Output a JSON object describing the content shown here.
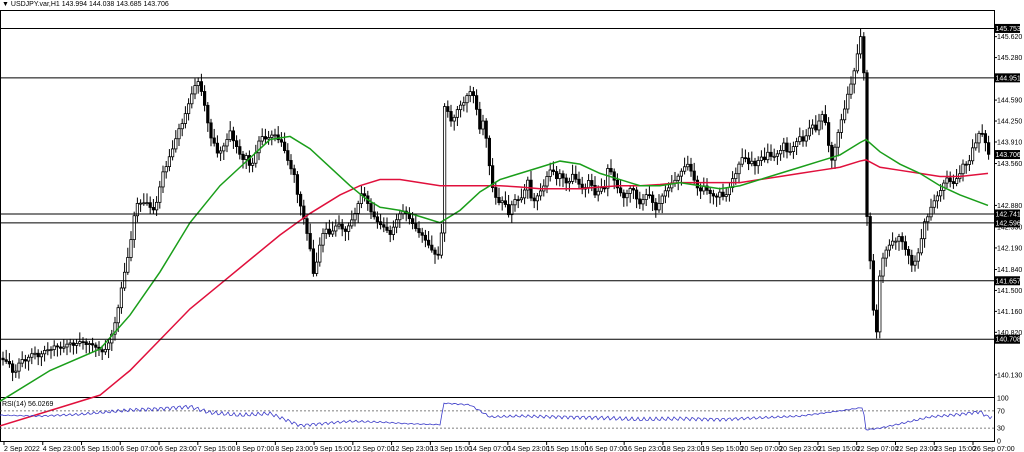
{
  "header": {
    "triangle": "▼",
    "symbol": "USDJPY.var,H1",
    "ohlc": "143.994 144.038 143.685 143.706"
  },
  "rsi_label": "RSI(14) 56.0269",
  "colors": {
    "candle_up": "#ffffff",
    "candle_down": "#000000",
    "candle_outline": "#000000",
    "ma_fast": "#1a9e1a",
    "ma_slow": "#e0103c",
    "rsi_line": "#3a3ac8",
    "level_line": "#000000",
    "label_bg": "#000000",
    "label_text": "#ffffff"
  },
  "chart_data": {
    "type": "line",
    "instrument": "USDJPY.var",
    "timeframe": "H1",
    "price_axis": {
      "ylim": [
        139.77,
        146.02
      ],
      "ticks": [
        "145.620",
        "145.280",
        "144.590",
        "144.250",
        "143.910",
        "143.560",
        "142.880",
        "142.530",
        "142.190",
        "141.840",
        "141.500",
        "141.160",
        "140.820",
        "140.130"
      ]
    },
    "time_axis": {
      "labels": [
        "2 Sep 2022",
        "4 Sep 23:00",
        "5 Sep 15:00",
        "6 Sep 07:00",
        "6 Sep 23:00",
        "7 Sep 15:00",
        "8 Sep 07:00",
        "8 Sep 23:00",
        "9 Sep 15:00",
        "12 Sep 07:00",
        "12 Sep 23:00",
        "13 Sep 15:00",
        "14 Sep 07:00",
        "14 Sep 23:00",
        "15 Sep 15:00",
        "16 Sep 07:00",
        "16 Sep 23:00",
        "18 Sep 23:00",
        "19 Sep 15:00",
        "20 Sep 07:00",
        "20 Sep 23:00",
        "21 Sep 15:00",
        "22 Sep 07:00",
        "22 Sep 23:00",
        "23 Sep 15:00",
        "26 Sep 07:00"
      ]
    },
    "levels": [
      {
        "value": 145.753,
        "label": "145.753"
      },
      {
        "value": 144.951,
        "label": "144.951"
      },
      {
        "value": 142.741,
        "label": "142.741"
      },
      {
        "value": 142.596,
        "label": "142.596"
      },
      {
        "value": 141.657,
        "label": "141.657"
      },
      {
        "value": 140.708,
        "label": "140.708"
      }
    ],
    "current_price": {
      "value": 143.706,
      "label": "143.706"
    },
    "close_path": [
      [
        0,
        140.4
      ],
      [
        6,
        140.35
      ],
      [
        10,
        140.3
      ],
      [
        14,
        140.1
      ],
      [
        18,
        140.3
      ],
      [
        22,
        140.38
      ],
      [
        26,
        140.35
      ],
      [
        30,
        140.45
      ],
      [
        34,
        140.5
      ],
      [
        38,
        140.42
      ],
      [
        42,
        140.48
      ],
      [
        46,
        140.55
      ],
      [
        50,
        140.52
      ],
      [
        54,
        140.6
      ],
      [
        58,
        140.58
      ],
      [
        62,
        140.55
      ],
      [
        66,
        140.62
      ],
      [
        70,
        140.65
      ],
      [
        74,
        140.6
      ],
      [
        78,
        140.66
      ],
      [
        82,
        140.68
      ],
      [
        86,
        140.62
      ],
      [
        90,
        140.64
      ],
      [
        94,
        140.6
      ],
      [
        98,
        140.55
      ],
      [
        102,
        140.5
      ],
      [
        106,
        140.55
      ],
      [
        110,
        140.7
      ],
      [
        114,
        140.9
      ],
      [
        118,
        141.2
      ],
      [
        122,
        141.6
      ],
      [
        126,
        141.9
      ],
      [
        130,
        142.2
      ],
      [
        134,
        142.7
      ],
      [
        138,
        142.95
      ],
      [
        142,
        142.9
      ],
      [
        146,
        142.95
      ],
      [
        150,
        142.85
      ],
      [
        154,
        142.8
      ],
      [
        158,
        143.0
      ],
      [
        162,
        143.4
      ],
      [
        166,
        143.5
      ],
      [
        170,
        143.7
      ],
      [
        174,
        143.85
      ],
      [
        178,
        144.1
      ],
      [
        182,
        144.2
      ],
      [
        186,
        144.4
      ],
      [
        190,
        144.6
      ],
      [
        194,
        144.8
      ],
      [
        198,
        144.9
      ],
      [
        202,
        144.7
      ],
      [
        206,
        144.4
      ],
      [
        210,
        144.0
      ],
      [
        214,
        143.9
      ],
      [
        218,
        143.7
      ],
      [
        222,
        143.8
      ],
      [
        226,
        143.9
      ],
      [
        230,
        144.1
      ],
      [
        234,
        143.9
      ],
      [
        238,
        143.8
      ],
      [
        242,
        143.6
      ],
      [
        246,
        143.7
      ],
      [
        250,
        143.5
      ],
      [
        254,
        143.6
      ],
      [
        258,
        143.9
      ],
      [
        262,
        144.0
      ],
      [
        266,
        143.95
      ],
      [
        270,
        144.0
      ],
      [
        274,
        144.05
      ],
      [
        278,
        143.95
      ],
      [
        282,
        143.9
      ],
      [
        286,
        143.7
      ],
      [
        290,
        143.5
      ],
      [
        294,
        143.4
      ],
      [
        298,
        143.0
      ],
      [
        302,
        142.8
      ],
      [
        306,
        142.5
      ],
      [
        310,
        142.2
      ],
      [
        314,
        141.7
      ],
      [
        318,
        142.1
      ],
      [
        322,
        142.4
      ],
      [
        326,
        142.5
      ],
      [
        330,
        142.4
      ],
      [
        334,
        142.5
      ],
      [
        338,
        142.6
      ],
      [
        342,
        142.5
      ],
      [
        346,
        142.45
      ],
      [
        350,
        142.6
      ],
      [
        354,
        142.7
      ],
      [
        358,
        142.9
      ],
      [
        362,
        143.1
      ],
      [
        366,
        143.0
      ],
      [
        370,
        142.8
      ],
      [
        374,
        142.7
      ],
      [
        378,
        142.6
      ],
      [
        382,
        142.55
      ],
      [
        386,
        142.5
      ],
      [
        390,
        142.4
      ],
      [
        394,
        142.55
      ],
      [
        398,
        142.7
      ],
      [
        402,
        142.8
      ],
      [
        406,
        142.75
      ],
      [
        410,
        142.65
      ],
      [
        414,
        142.55
      ],
      [
        418,
        142.45
      ],
      [
        422,
        142.4
      ],
      [
        426,
        142.3
      ],
      [
        430,
        142.2
      ],
      [
        434,
        142.1
      ],
      [
        438,
        142.05
      ],
      [
        442,
        142.5
      ],
      [
        444,
        144.5
      ],
      [
        448,
        144.4
      ],
      [
        452,
        144.2
      ],
      [
        456,
        144.4
      ],
      [
        460,
        144.5
      ],
      [
        464,
        144.55
      ],
      [
        468,
        144.7
      ],
      [
        472,
        144.75
      ],
      [
        476,
        144.5
      ],
      [
        480,
        144.1
      ],
      [
        484,
        144.3
      ],
      [
        488,
        143.7
      ],
      [
        492,
        143.2
      ],
      [
        496,
        143.0
      ],
      [
        500,
        142.9
      ],
      [
        504,
        143.0
      ],
      [
        508,
        142.7
      ],
      [
        512,
        142.9
      ],
      [
        516,
        143.0
      ],
      [
        520,
        142.95
      ],
      [
        524,
        143.1
      ],
      [
        528,
        143.3
      ],
      [
        532,
        142.9
      ],
      [
        536,
        143.0
      ],
      [
        540,
        143.1
      ],
      [
        544,
        143.2
      ],
      [
        548,
        143.4
      ],
      [
        552,
        143.5
      ],
      [
        556,
        143.3
      ],
      [
        560,
        143.4
      ],
      [
        564,
        143.3
      ],
      [
        568,
        143.2
      ],
      [
        572,
        143.4
      ],
      [
        576,
        143.3
      ],
      [
        580,
        143.2
      ],
      [
        584,
        143.1
      ],
      [
        588,
        143.3
      ],
      [
        592,
        143.2
      ],
      [
        596,
        143.0
      ],
      [
        600,
        143.2
      ],
      [
        604,
        143.1
      ],
      [
        608,
        143.5
      ],
      [
        612,
        143.4
      ],
      [
        616,
        143.2
      ],
      [
        620,
        143.1
      ],
      [
        624,
        143.0
      ],
      [
        628,
        143.1
      ],
      [
        632,
        143.2
      ],
      [
        636,
        143.0
      ],
      [
        640,
        142.9
      ],
      [
        644,
        143.0
      ],
      [
        648,
        143.1
      ],
      [
        652,
        142.95
      ],
      [
        656,
        142.8
      ],
      [
        660,
        142.95
      ],
      [
        664,
        143.1
      ],
      [
        668,
        143.15
      ],
      [
        672,
        143.25
      ],
      [
        676,
        143.3
      ],
      [
        680,
        143.4
      ],
      [
        684,
        143.5
      ],
      [
        688,
        143.55
      ],
      [
        692,
        143.4
      ],
      [
        696,
        143.2
      ],
      [
        700,
        143.1
      ],
      [
        704,
        143.2
      ],
      [
        708,
        143.1
      ],
      [
        712,
        143.05
      ],
      [
        716,
        143.0
      ],
      [
        720,
        143.1
      ],
      [
        724,
        143.0
      ],
      [
        728,
        143.1
      ],
      [
        732,
        143.3
      ],
      [
        736,
        143.4
      ],
      [
        740,
        143.6
      ],
      [
        744,
        143.7
      ],
      [
        748,
        143.55
      ],
      [
        752,
        143.6
      ],
      [
        756,
        143.5
      ],
      [
        760,
        143.7
      ],
      [
        764,
        143.6
      ],
      [
        768,
        143.75
      ],
      [
        772,
        143.65
      ],
      [
        776,
        143.7
      ],
      [
        780,
        143.75
      ],
      [
        784,
        143.9
      ],
      [
        788,
        143.7
      ],
      [
        792,
        143.8
      ],
      [
        796,
        143.9
      ],
      [
        800,
        144.0
      ],
      [
        804,
        143.9
      ],
      [
        808,
        144.1
      ],
      [
        812,
        144.2
      ],
      [
        816,
        144.1
      ],
      [
        820,
        144.3
      ],
      [
        824,
        144.4
      ],
      [
        828,
        143.9
      ],
      [
        832,
        143.6
      ],
      [
        836,
        143.9
      ],
      [
        840,
        144.2
      ],
      [
        844,
        144.4
      ],
      [
        848,
        144.7
      ],
      [
        852,
        144.9
      ],
      [
        856,
        145.2
      ],
      [
        860,
        145.6
      ],
      [
        863,
        145.7
      ],
      [
        866,
        143.2
      ],
      [
        868,
        142.2
      ],
      [
        871,
        141.9
      ],
      [
        874,
        141.0
      ],
      [
        877,
        140.8
      ],
      [
        880,
        141.8
      ],
      [
        884,
        142.1
      ],
      [
        888,
        142.2
      ],
      [
        892,
        142.3
      ],
      [
        896,
        142.3
      ],
      [
        900,
        142.4
      ],
      [
        904,
        142.2
      ],
      [
        908,
        142.1
      ],
      [
        912,
        141.9
      ],
      [
        916,
        142.0
      ],
      [
        920,
        142.2
      ],
      [
        924,
        142.6
      ],
      [
        928,
        142.7
      ],
      [
        932,
        142.9
      ],
      [
        936,
        143.0
      ],
      [
        940,
        143.1
      ],
      [
        944,
        143.25
      ],
      [
        948,
        143.35
      ],
      [
        952,
        143.2
      ],
      [
        956,
        143.3
      ],
      [
        960,
        143.4
      ],
      [
        964,
        143.6
      ],
      [
        968,
        143.5
      ],
      [
        972,
        143.8
      ],
      [
        976,
        143.9
      ],
      [
        980,
        144.1
      ],
      [
        984,
        144.0
      ],
      [
        988,
        143.71
      ]
    ],
    "ma_fast_path": [
      [
        0,
        139.7
      ],
      [
        50,
        140.2
      ],
      [
        100,
        140.55
      ],
      [
        130,
        141.1
      ],
      [
        160,
        141.8
      ],
      [
        190,
        142.6
      ],
      [
        220,
        143.2
      ],
      [
        250,
        143.65
      ],
      [
        270,
        143.95
      ],
      [
        290,
        144.0
      ],
      [
        310,
        143.8
      ],
      [
        330,
        143.5
      ],
      [
        350,
        143.2
      ],
      [
        365,
        143.0
      ],
      [
        380,
        142.85
      ],
      [
        400,
        142.8
      ],
      [
        420,
        142.7
      ],
      [
        440,
        142.6
      ],
      [
        460,
        142.8
      ],
      [
        480,
        143.1
      ],
      [
        500,
        143.3
      ],
      [
        520,
        143.4
      ],
      [
        540,
        143.5
      ],
      [
        560,
        143.6
      ],
      [
        580,
        143.55
      ],
      [
        600,
        143.4
      ],
      [
        620,
        143.3
      ],
      [
        640,
        143.2
      ],
      [
        660,
        143.2
      ],
      [
        680,
        143.25
      ],
      [
        700,
        143.2
      ],
      [
        720,
        143.15
      ],
      [
        740,
        143.2
      ],
      [
        760,
        143.3
      ],
      [
        780,
        143.4
      ],
      [
        800,
        143.5
      ],
      [
        820,
        143.6
      ],
      [
        840,
        143.7
      ],
      [
        860,
        143.9
      ],
      [
        866,
        143.95
      ],
      [
        880,
        143.75
      ],
      [
        900,
        143.55
      ],
      [
        920,
        143.4
      ],
      [
        940,
        143.2
      ],
      [
        960,
        143.05
      ],
      [
        988,
        142.88
      ]
    ],
    "ma_slow_path": [
      [
        0,
        139.3
      ],
      [
        60,
        139.6
      ],
      [
        100,
        139.8
      ],
      [
        130,
        140.2
      ],
      [
        160,
        140.7
      ],
      [
        190,
        141.2
      ],
      [
        220,
        141.6
      ],
      [
        250,
        142.0
      ],
      [
        280,
        142.4
      ],
      [
        310,
        142.75
      ],
      [
        340,
        143.05
      ],
      [
        360,
        143.2
      ],
      [
        380,
        143.3
      ],
      [
        400,
        143.3
      ],
      [
        420,
        143.25
      ],
      [
        440,
        143.2
      ],
      [
        460,
        143.2
      ],
      [
        480,
        143.2
      ],
      [
        500,
        143.2
      ],
      [
        520,
        143.18
      ],
      [
        540,
        143.15
      ],
      [
        560,
        143.15
      ],
      [
        580,
        143.15
      ],
      [
        600,
        143.18
      ],
      [
        620,
        143.2
      ],
      [
        640,
        143.2
      ],
      [
        660,
        143.22
      ],
      [
        680,
        143.25
      ],
      [
        700,
        143.25
      ],
      [
        720,
        143.25
      ],
      [
        740,
        143.25
      ],
      [
        760,
        143.3
      ],
      [
        780,
        143.35
      ],
      [
        800,
        143.4
      ],
      [
        820,
        143.45
      ],
      [
        840,
        143.5
      ],
      [
        860,
        143.6
      ],
      [
        866,
        143.62
      ],
      [
        880,
        143.5
      ],
      [
        900,
        143.45
      ],
      [
        920,
        143.4
      ],
      [
        940,
        143.35
      ],
      [
        960,
        143.35
      ],
      [
        988,
        143.4
      ]
    ],
    "rsi": {
      "name": "RSI(14)",
      "value": 56.0269,
      "ylim": [
        0,
        100
      ],
      "ticks": [
        100,
        70,
        30,
        0
      ],
      "levels": [
        70,
        30
      ],
      "path": [
        [
          0,
          60
        ],
        [
          40,
          58
        ],
        [
          80,
          62
        ],
        [
          110,
          68
        ],
        [
          130,
          72
        ],
        [
          160,
          75
        ],
        [
          190,
          80
        ],
        [
          210,
          66
        ],
        [
          240,
          60
        ],
        [
          270,
          64
        ],
        [
          300,
          36
        ],
        [
          320,
          40
        ],
        [
          350,
          46
        ],
        [
          380,
          44
        ],
        [
          410,
          40
        ],
        [
          440,
          38
        ],
        [
          444,
          88
        ],
        [
          470,
          84
        ],
        [
          490,
          56
        ],
        [
          520,
          58
        ],
        [
          560,
          56
        ],
        [
          600,
          54
        ],
        [
          640,
          50
        ],
        [
          680,
          52
        ],
        [
          720,
          50
        ],
        [
          760,
          54
        ],
        [
          800,
          58
        ],
        [
          840,
          70
        ],
        [
          863,
          78
        ],
        [
          866,
          26
        ],
        [
          880,
          30
        ],
        [
          900,
          40
        ],
        [
          930,
          56
        ],
        [
          960,
          62
        ],
        [
          980,
          68
        ],
        [
          988,
          56
        ]
      ]
    }
  }
}
